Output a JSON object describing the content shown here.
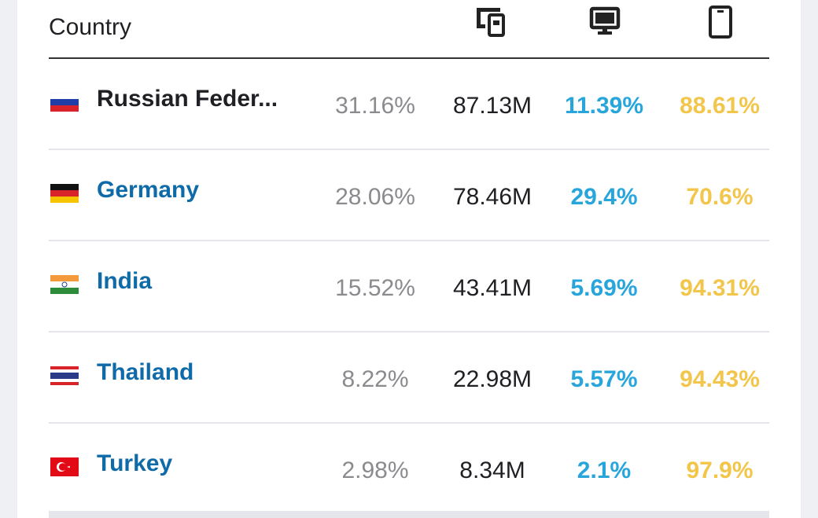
{
  "header": {
    "country_label": "Country",
    "icons": [
      "all-devices-icon",
      "desktop-icon",
      "mobile-icon"
    ]
  },
  "rows": [
    {
      "country": "Russian Feder...",
      "flag": "russia-flag",
      "share": "31.16%",
      "visits": "87.13M",
      "desktop": "11.39%",
      "mobile": "88.61%"
    },
    {
      "country": "Germany",
      "flag": "germany-flag",
      "share": "28.06%",
      "visits": "78.46M",
      "desktop": "29.4%",
      "mobile": "70.6%"
    },
    {
      "country": "India",
      "flag": "india-flag",
      "share": "15.52%",
      "visits": "43.41M",
      "desktop": "5.69%",
      "mobile": "94.31%"
    },
    {
      "country": "Thailand",
      "flag": "thailand-flag",
      "share": "8.22%",
      "visits": "22.98M",
      "desktop": "5.57%",
      "mobile": "94.43%"
    },
    {
      "country": "Turkey",
      "flag": "turkey-flag",
      "share": "2.98%",
      "visits": "8.34M",
      "desktop": "2.1%",
      "mobile": "97.9%"
    }
  ],
  "colors": {
    "country_link": "#0f6ba8",
    "desktop": "#28a6dc",
    "mobile": "#f2c54b",
    "share": "#8a8a8f"
  }
}
